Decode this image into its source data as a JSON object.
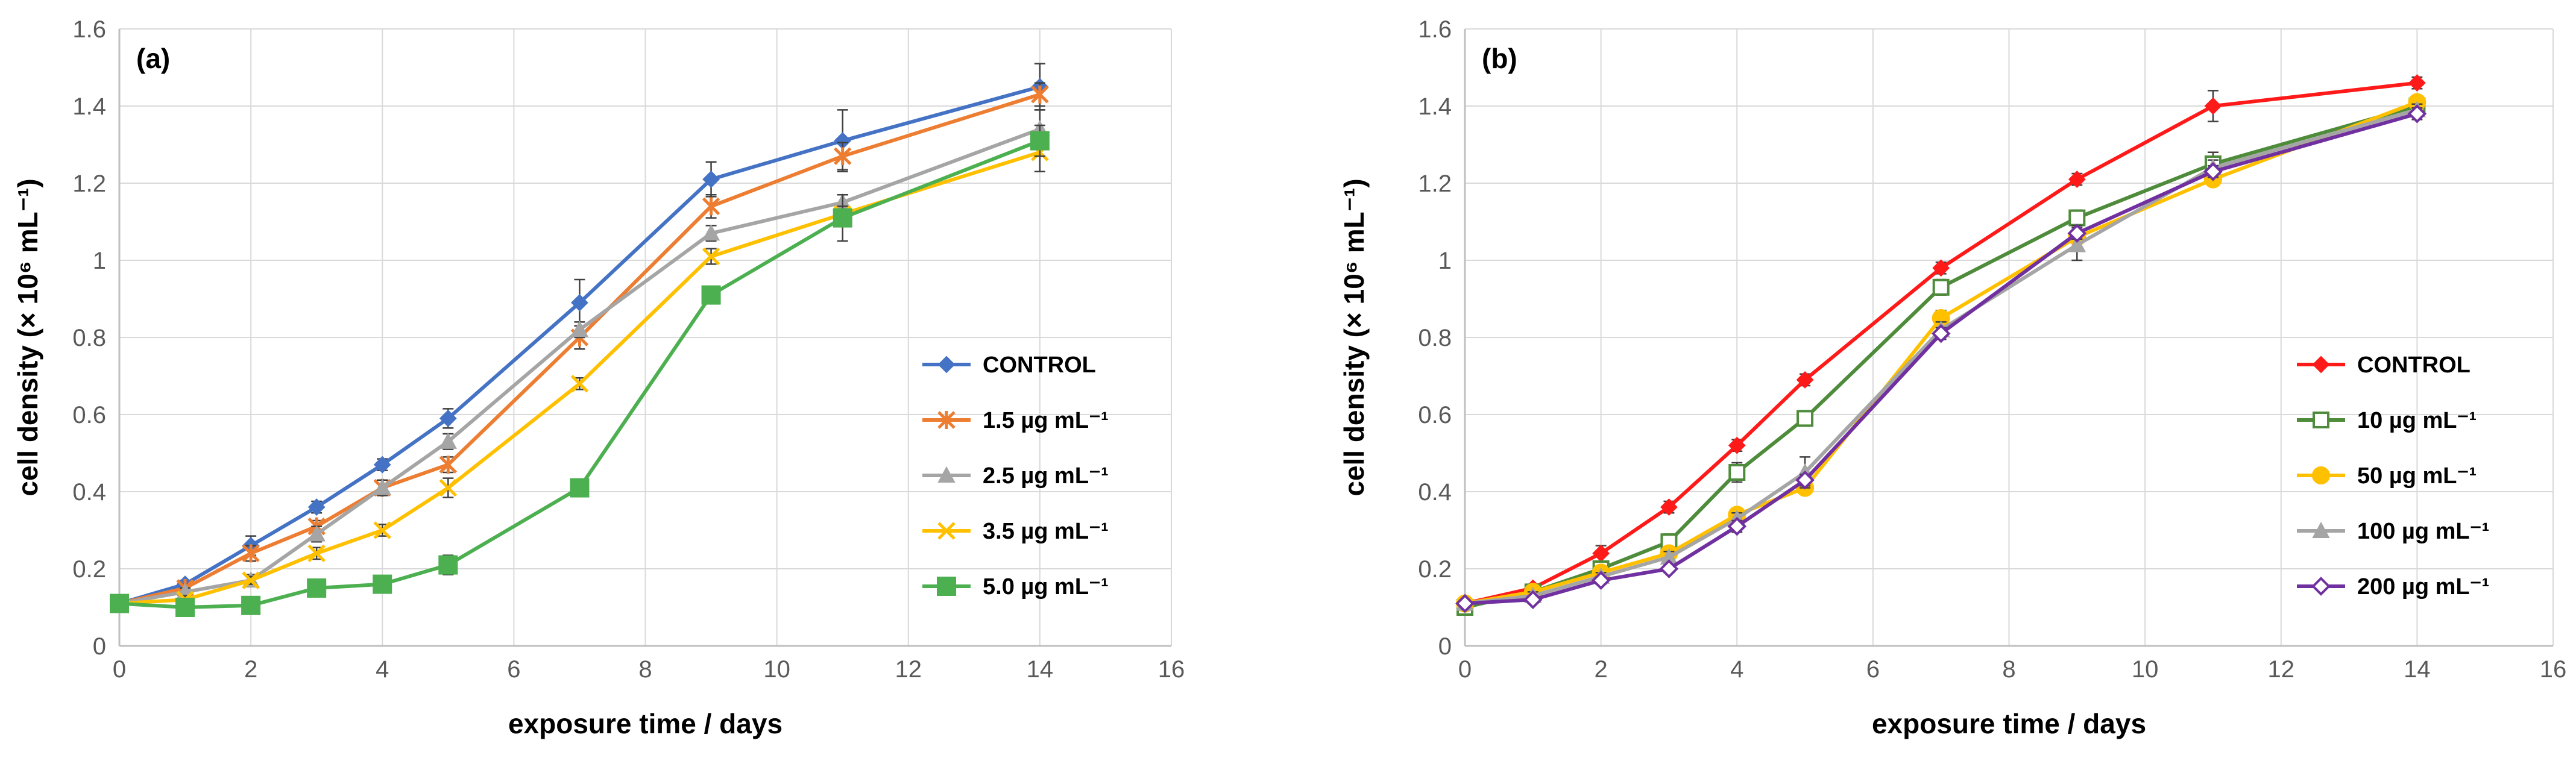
{
  "chart_data": [
    {
      "type": "line",
      "panel_label": "(a)",
      "xlabel": "exposure time / days",
      "ylabel": "cell density (× 10⁶ mL⁻¹)",
      "xlim": [
        0,
        16
      ],
      "ylim": [
        0,
        1.6
      ],
      "xticks": [
        0,
        2,
        4,
        6,
        8,
        10,
        12,
        14,
        16
      ],
      "yticks": [
        0,
        0.2,
        0.4,
        0.6,
        0.8,
        1,
        1.2,
        1.4,
        1.6
      ],
      "xtick_labels": [
        "0",
        "2",
        "4",
        "6",
        "8",
        "10",
        "12",
        "14",
        "16"
      ],
      "ytick_labels": [
        "0",
        "0.2",
        "0.4",
        "0.6",
        "0.8",
        "1",
        "1.2",
        "1.4",
        "1.6"
      ],
      "grid": true,
      "legend_position": "center-right",
      "x": [
        0,
        1,
        2,
        3,
        4,
        5,
        7,
        9,
        11,
        14
      ],
      "series": [
        {
          "name": "CONTROL",
          "color": "#4472C4",
          "marker": "diamond",
          "values": [
            0.11,
            0.16,
            0.26,
            0.36,
            0.47,
            0.59,
            0.89,
            1.21,
            1.31,
            1.45
          ],
          "errors": [
            0.01,
            0.01,
            0.025,
            0.015,
            0.015,
            0.025,
            0.06,
            0.045,
            0.08,
            0.06
          ]
        },
        {
          "name": "1.5 µg mL⁻¹",
          "color": "#ED7D31",
          "marker": "star",
          "values": [
            0.11,
            0.15,
            0.24,
            0.31,
            0.41,
            0.47,
            0.8,
            1.14,
            1.27,
            1.43
          ],
          "errors": [
            0.01,
            0.01,
            0.02,
            0.015,
            0.02,
            0.02,
            0.03,
            0.03,
            0.035,
            0.03
          ]
        },
        {
          "name": "2.5 µg mL⁻¹",
          "color": "#A5A5A5",
          "marker": "triangle",
          "values": [
            0.11,
            0.14,
            0.17,
            0.29,
            0.41,
            0.53,
            0.82,
            1.07,
            1.15,
            1.34
          ],
          "errors": [
            0.01,
            0.01,
            0.015,
            0.02,
            0.02,
            0.02,
            0.02,
            0.02,
            0.02,
            0.05
          ]
        },
        {
          "name": "3.5 µg mL⁻¹",
          "color": "#FFC000",
          "marker": "x",
          "values": [
            0.11,
            0.12,
            0.17,
            0.24,
            0.3,
            0.41,
            0.68,
            1.01,
            1.12,
            1.28
          ],
          "errors": [
            0.01,
            0.01,
            0.01,
            0.015,
            0.015,
            0.025,
            0.015,
            0.02,
            0.02,
            0.05
          ]
        },
        {
          "name": "5.0 µg mL⁻¹",
          "color": "#4CAF50",
          "marker": "square",
          "values": [
            0.11,
            0.1,
            0.105,
            0.15,
            0.16,
            0.21,
            0.41,
            0.91,
            1.11,
            1.31
          ],
          "errors": [
            0.01,
            0.01,
            0.01,
            0.01,
            0.01,
            0.025,
            0.015,
            0.02,
            0.06,
            0.04
          ]
        }
      ]
    },
    {
      "type": "line",
      "panel_label": "(b)",
      "xlabel": "exposure time / days",
      "ylabel": "cell density (× 10⁶ mL⁻¹)",
      "xlim": [
        0,
        16
      ],
      "ylim": [
        0,
        1.6
      ],
      "xticks": [
        0,
        2,
        4,
        6,
        8,
        10,
        12,
        14,
        16
      ],
      "yticks": [
        0,
        0.2,
        0.4,
        0.6,
        0.8,
        1,
        1.2,
        1.4,
        1.6
      ],
      "xtick_labels": [
        "0",
        "2",
        "4",
        "6",
        "8",
        "10",
        "12",
        "14",
        "16"
      ],
      "ytick_labels": [
        "0",
        "0.2",
        "0.4",
        "0.6",
        "0.8",
        "1",
        "1.2",
        "1.4",
        "1.6"
      ],
      "grid": true,
      "legend_position": "center-right",
      "x": [
        0,
        1,
        2,
        3,
        4,
        5,
        7,
        9,
        11,
        14
      ],
      "series": [
        {
          "name": "CONTROL",
          "color": "#FF1A1A",
          "marker": "diamond",
          "values": [
            0.11,
            0.15,
            0.24,
            0.36,
            0.52,
            0.69,
            0.98,
            1.21,
            1.4,
            1.46
          ],
          "errors": [
            0.01,
            0.01,
            0.02,
            0.015,
            0.015,
            0.015,
            0.015,
            0.015,
            0.04,
            0.015
          ]
        },
        {
          "name": "10 µg mL⁻¹",
          "color": "#4E8B3A",
          "marker": "open-square",
          "values": [
            0.1,
            0.14,
            0.2,
            0.27,
            0.45,
            0.59,
            0.93,
            1.11,
            1.25,
            1.4
          ],
          "errors": [
            0.01,
            0.01,
            0.015,
            0.02,
            0.025,
            0.02,
            0.02,
            0.02,
            0.03,
            0.02
          ]
        },
        {
          "name": "50 µg mL⁻¹",
          "color": "#FFC000",
          "marker": "circle",
          "values": [
            0.11,
            0.14,
            0.19,
            0.24,
            0.34,
            0.41,
            0.85,
            1.06,
            1.21,
            1.41
          ],
          "errors": [
            0.01,
            0.01,
            0.01,
            0.015,
            0.015,
            0.015,
            0.02,
            0.03,
            0.015,
            0.015
          ]
        },
        {
          "name": "100 µg mL⁻¹",
          "color": "#A5A5A5",
          "marker": "triangle",
          "values": [
            0.11,
            0.13,
            0.18,
            0.23,
            0.33,
            0.45,
            0.82,
            1.04,
            1.24,
            1.39
          ],
          "errors": [
            0.01,
            0.01,
            0.01,
            0.015,
            0.015,
            0.04,
            0.02,
            0.04,
            0.02,
            0.015
          ]
        },
        {
          "name": "200 µg mL⁻¹",
          "color": "#7030A0",
          "marker": "open-diamond",
          "values": [
            0.11,
            0.12,
            0.17,
            0.2,
            0.31,
            0.43,
            0.81,
            1.07,
            1.23,
            1.38
          ],
          "errors": [
            0.01,
            0.01,
            0.01,
            0.01,
            0.015,
            0.015,
            0.015,
            0.015,
            0.015,
            0.015
          ]
        }
      ]
    }
  ]
}
